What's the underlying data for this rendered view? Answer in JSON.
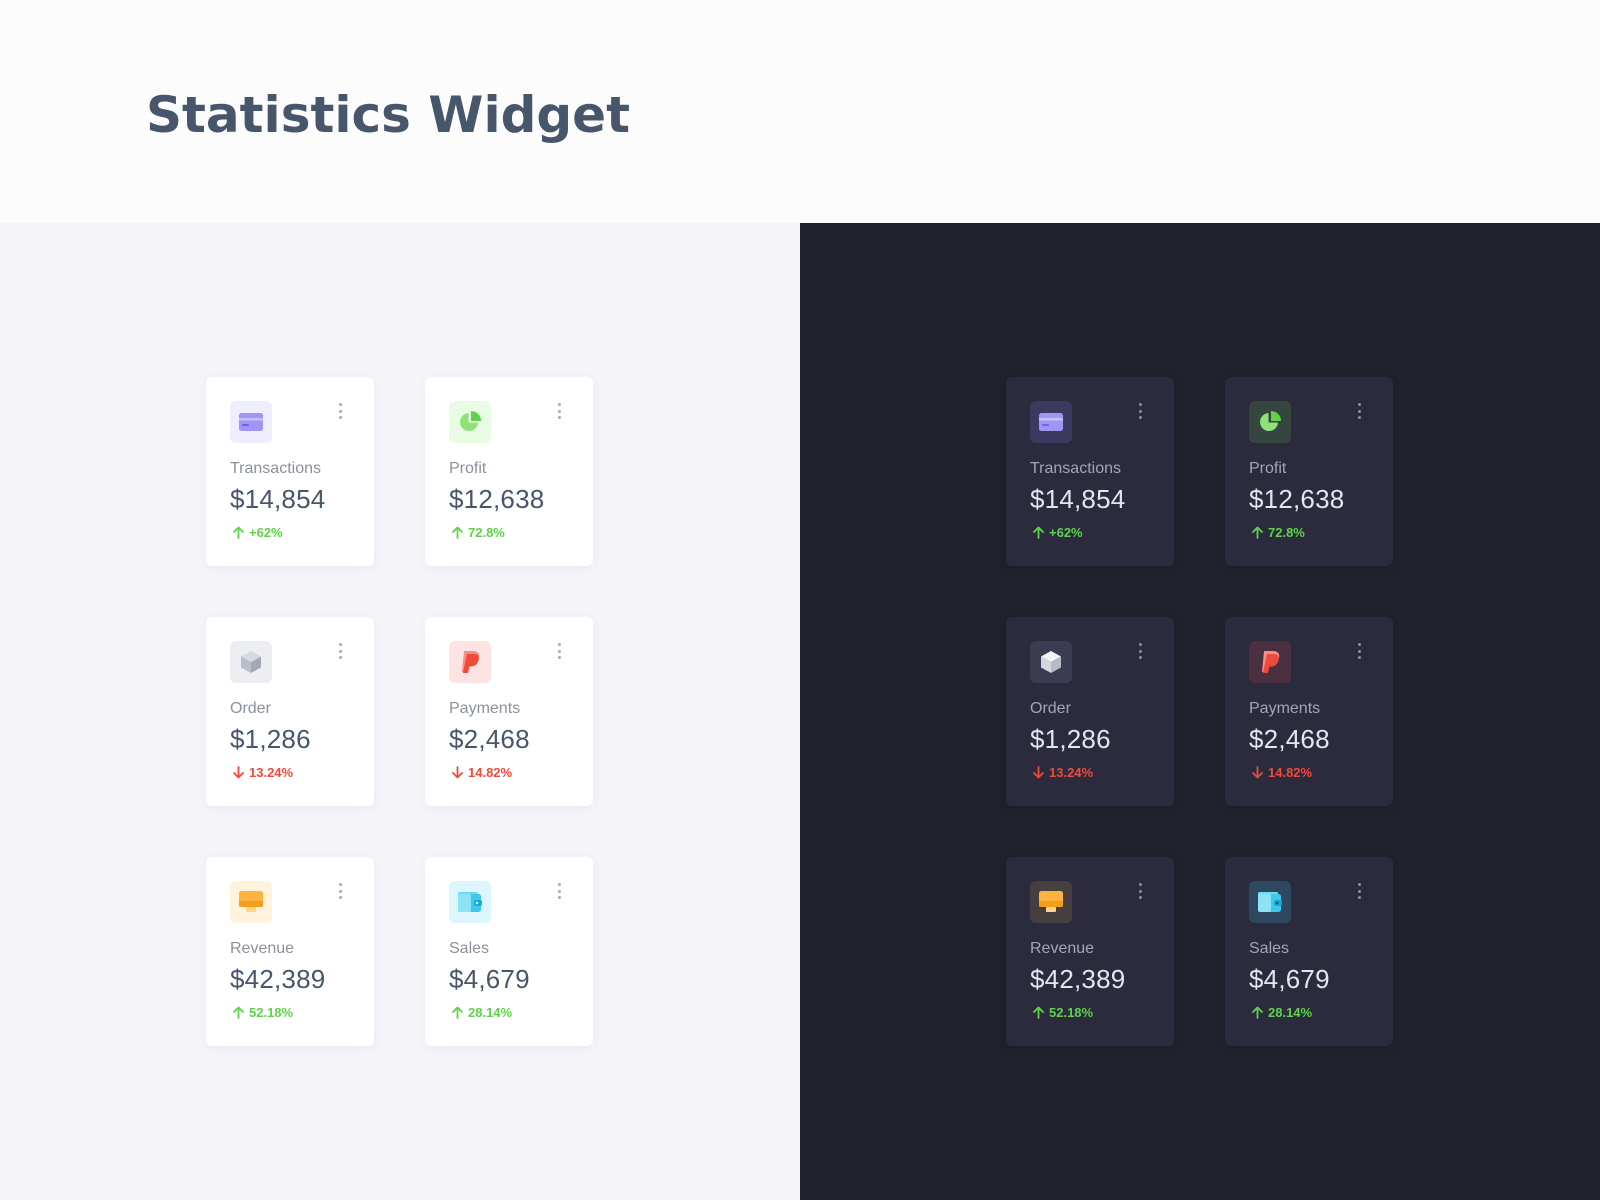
{
  "page": {
    "title": "Statistics Widget"
  },
  "colors": {
    "positive": "#5fd24a",
    "negative": "#f04a3a",
    "light_bg": "#f4f4f9",
    "dark_bg": "#22222f"
  },
  "widgets": [
    {
      "label": "Transactions",
      "value": "$14,854",
      "change": "+62%",
      "trend": "up",
      "icon": "credit-card-icon"
    },
    {
      "label": "Profit",
      "value": "$12,638",
      "change": "72.8%",
      "trend": "up",
      "icon": "pie-chart-icon"
    },
    {
      "label": "Order",
      "value": "$1,286",
      "change": "13.24%",
      "trend": "down",
      "icon": "cube-icon"
    },
    {
      "label": "Payments",
      "value": "$2,468",
      "change": "14.82%",
      "trend": "down",
      "icon": "paypal-icon"
    },
    {
      "label": "Revenue",
      "value": "$42,389",
      "change": "52.18%",
      "trend": "up",
      "icon": "monitor-icon"
    },
    {
      "label": "Sales",
      "value": "$4,679",
      "change": "28.14%",
      "trend": "up",
      "icon": "wallet-icon"
    }
  ]
}
